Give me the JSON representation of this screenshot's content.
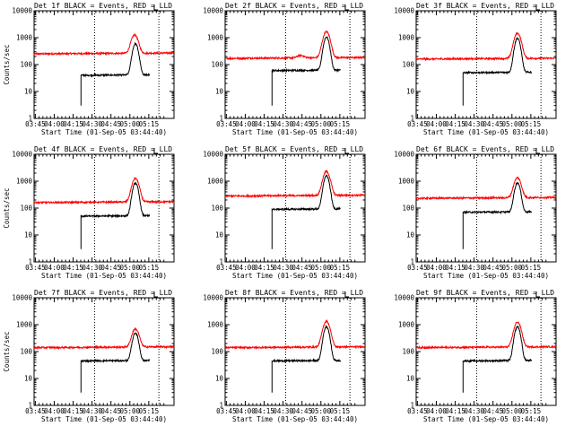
{
  "chart_data": [
    {
      "type": "line",
      "title": "Det 1f BLACK = Events, RED = LLD",
      "xlabel": "Start Time (01-Sep-05 03:44:40)",
      "ylabel": "Counts/sec",
      "ylim": [
        1,
        10000
      ],
      "yscale": "log",
      "x_tick_labels": [
        "03:45",
        "04:00",
        "04:15",
        "04:30",
        "04:45",
        "05:00",
        "05:15"
      ],
      "y_tick_labels": [
        "1",
        "10",
        "100",
        "1000",
        "10000"
      ],
      "xlim_minutes": [
        0,
        37
      ],
      "vlines_minutes": [
        16,
        33
      ],
      "series": [
        {
          "name": "LLD",
          "color": "#ff0000",
          "base": 250,
          "peak": 1000,
          "peak_t": 26.6,
          "width": 1.1,
          "start": 0,
          "end": 37,
          "bump_t": null,
          "bump_amp": 0
        },
        {
          "name": "Events",
          "color": "#000000",
          "base": 40,
          "peak": 550,
          "peak_t": 26.8,
          "width": 0.9,
          "start": 12.4,
          "end": 30.6,
          "bump_t": null,
          "bump_amp": 0
        }
      ]
    },
    {
      "type": "line",
      "title": "Det 2f BLACK = Events, RED = LLD",
      "xlabel": "Start Time (01-Sep-05 03:44:40)",
      "ylabel": "",
      "ylim": [
        1,
        10000
      ],
      "yscale": "log",
      "x_tick_labels": [
        "03:45",
        "04:00",
        "04:15",
        "04:30",
        "04:45",
        "05:00",
        "05:15"
      ],
      "y_tick_labels": [
        "1",
        "10",
        "100",
        "1000",
        "10000"
      ],
      "xlim_minutes": [
        0,
        37
      ],
      "vlines_minutes": [
        16,
        33
      ],
      "series": [
        {
          "name": "LLD",
          "color": "#ff0000",
          "base": 170,
          "peak": 1500,
          "peak_t": 26.8,
          "width": 1.1,
          "start": 0,
          "end": 37,
          "bump_t": 20,
          "bump_amp": 0.25
        },
        {
          "name": "Events",
          "color": "#000000",
          "base": 60,
          "peak": 1000,
          "peak_t": 26.8,
          "width": 0.9,
          "start": 12.4,
          "end": 30.6,
          "bump_t": null,
          "bump_amp": 0
        }
      ]
    },
    {
      "type": "line",
      "title": "Det 3f BLACK = Events, RED = LLD",
      "xlabel": "Start Time (01-Sep-05 03:44:40)",
      "ylabel": "",
      "ylim": [
        1,
        10000
      ],
      "yscale": "log",
      "x_tick_labels": [
        "03:45",
        "04:00",
        "04:15",
        "04:30",
        "04:45",
        "05:00",
        "05:15"
      ],
      "y_tick_labels": [
        "1",
        "10",
        "100",
        "1000",
        "10000"
      ],
      "xlim_minutes": [
        0,
        37
      ],
      "vlines_minutes": [
        16,
        33
      ],
      "series": [
        {
          "name": "LLD",
          "color": "#ff0000",
          "base": 160,
          "peak": 1300,
          "peak_t": 26.8,
          "width": 1.1,
          "start": 0,
          "end": 37,
          "bump_t": null,
          "bump_amp": 0
        },
        {
          "name": "Events",
          "color": "#000000",
          "base": 50,
          "peak": 900,
          "peak_t": 26.8,
          "width": 0.9,
          "start": 12.4,
          "end": 30.6,
          "bump_t": null,
          "bump_amp": 0
        }
      ]
    },
    {
      "type": "line",
      "title": "Det 4f BLACK = Events, RED = LLD",
      "xlabel": "Start Time (01-Sep-05 03:44:40)",
      "ylabel": "Counts/sec",
      "ylim": [
        1,
        10000
      ],
      "yscale": "log",
      "x_tick_labels": [
        "03:45",
        "04:00",
        "04:15",
        "04:30",
        "04:45",
        "05:00",
        "05:15"
      ],
      "y_tick_labels": [
        "1",
        "10",
        "100",
        "1000",
        "10000"
      ],
      "xlim_minutes": [
        0,
        37
      ],
      "vlines_minutes": [
        16,
        33
      ],
      "series": [
        {
          "name": "LLD",
          "color": "#ff0000",
          "base": 160,
          "peak": 1100,
          "peak_t": 26.8,
          "width": 1.1,
          "start": 0,
          "end": 37,
          "bump_t": null,
          "bump_amp": 0
        },
        {
          "name": "Events",
          "color": "#000000",
          "base": 50,
          "peak": 800,
          "peak_t": 26.8,
          "width": 0.9,
          "start": 12.4,
          "end": 30.6,
          "bump_t": null,
          "bump_amp": 0
        }
      ]
    },
    {
      "type": "line",
      "title": "Det 5f BLACK = Events, RED = LLD",
      "xlabel": "Start Time (01-Sep-05 03:44:40)",
      "ylabel": "",
      "ylim": [
        1,
        10000
      ],
      "yscale": "log",
      "x_tick_labels": [
        "03:45",
        "04:00",
        "04:15",
        "04:30",
        "04:45",
        "05:00",
        "05:15"
      ],
      "y_tick_labels": [
        "1",
        "10",
        "100",
        "1000",
        "10000"
      ],
      "xlim_minutes": [
        0,
        37
      ],
      "vlines_minutes": [
        16,
        33
      ],
      "series": [
        {
          "name": "LLD",
          "color": "#ff0000",
          "base": 280,
          "peak": 2000,
          "peak_t": 26.8,
          "width": 1.1,
          "start": 0,
          "end": 37,
          "bump_t": null,
          "bump_amp": 0
        },
        {
          "name": "Events",
          "color": "#000000",
          "base": 90,
          "peak": 1500,
          "peak_t": 26.8,
          "width": 0.9,
          "start": 12.4,
          "end": 30.6,
          "bump_t": null,
          "bump_amp": 0
        }
      ]
    },
    {
      "type": "line",
      "title": "Det 6f BLACK = Events, RED = LLD",
      "xlabel": "Start Time (01-Sep-05 03:44:40)",
      "ylabel": "",
      "ylim": [
        1,
        10000
      ],
      "yscale": "log",
      "x_tick_labels": [
        "03:45",
        "04:00",
        "04:15",
        "04:30",
        "04:45",
        "05:00",
        "05:15"
      ],
      "y_tick_labels": [
        "1",
        "10",
        "100",
        "1000",
        "10000"
      ],
      "xlim_minutes": [
        0,
        37
      ],
      "vlines_minutes": [
        16,
        33
      ],
      "series": [
        {
          "name": "LLD",
          "color": "#ff0000",
          "base": 230,
          "peak": 1100,
          "peak_t": 26.8,
          "width": 1.1,
          "start": 0,
          "end": 37,
          "bump_t": null,
          "bump_amp": 0
        },
        {
          "name": "Events",
          "color": "#000000",
          "base": 70,
          "peak": 800,
          "peak_t": 26.8,
          "width": 0.9,
          "start": 12.4,
          "end": 30.6,
          "bump_t": null,
          "bump_amp": 0
        }
      ]
    },
    {
      "type": "line",
      "title": "Det 7f BLACK = Events, RED = LLD",
      "xlabel": "Start Time (01-Sep-05 03:44:40)",
      "ylabel": "Counts/sec",
      "ylim": [
        1,
        10000
      ],
      "yscale": "log",
      "x_tick_labels": [
        "03:45",
        "04:00",
        "04:15",
        "04:30",
        "04:45",
        "05:00",
        "05:15"
      ],
      "y_tick_labels": [
        "1",
        "10",
        "100",
        "1000",
        "10000"
      ],
      "xlim_minutes": [
        0,
        37
      ],
      "vlines_minutes": [
        16,
        33
      ],
      "series": [
        {
          "name": "LLD",
          "color": "#ff0000",
          "base": 140,
          "peak": 550,
          "peak_t": 26.8,
          "width": 1.1,
          "start": 0,
          "end": 37,
          "bump_t": null,
          "bump_amp": 0
        },
        {
          "name": "Events",
          "color": "#000000",
          "base": 45,
          "peak": 450,
          "peak_t": 26.8,
          "width": 0.9,
          "start": 12.4,
          "end": 30.6,
          "bump_t": null,
          "bump_amp": 0
        }
      ]
    },
    {
      "type": "line",
      "title": "Det 8f BLACK = Events, RED = LLD",
      "xlabel": "Start Time (01-Sep-05 03:44:40)",
      "ylabel": "",
      "ylim": [
        1,
        10000
      ],
      "yscale": "log",
      "x_tick_labels": [
        "03:45",
        "04:00",
        "04:15",
        "04:30",
        "04:45",
        "05:00",
        "05:15"
      ],
      "y_tick_labels": [
        "1",
        "10",
        "100",
        "1000",
        "10000"
      ],
      "xlim_minutes": [
        0,
        37
      ],
      "vlines_minutes": [
        16,
        33
      ],
      "series": [
        {
          "name": "LLD",
          "color": "#ff0000",
          "base": 140,
          "peak": 1200,
          "peak_t": 26.8,
          "width": 1.1,
          "start": 0,
          "end": 37,
          "bump_t": null,
          "bump_amp": 0
        },
        {
          "name": "Events",
          "color": "#000000",
          "base": 45,
          "peak": 800,
          "peak_t": 26.8,
          "width": 0.9,
          "start": 12.4,
          "end": 30.6,
          "bump_t": null,
          "bump_amp": 0
        }
      ]
    },
    {
      "type": "line",
      "title": "Det 9f BLACK = Events, RED = LLD",
      "xlabel": "Start Time (01-Sep-05 03:44:40)",
      "ylabel": "",
      "ylim": [
        1,
        10000
      ],
      "yscale": "log",
      "x_tick_labels": [
        "03:45",
        "04:00",
        "04:15",
        "04:30",
        "04:45",
        "05:00",
        "05:15"
      ],
      "y_tick_labels": [
        "1",
        "10",
        "100",
        "1000",
        "10000"
      ],
      "xlim_minutes": [
        0,
        37
      ],
      "vlines_minutes": [
        16,
        33
      ],
      "series": [
        {
          "name": "LLD",
          "color": "#ff0000",
          "base": 140,
          "peak": 1100,
          "peak_t": 26.8,
          "width": 1.1,
          "start": 0,
          "end": 37,
          "bump_t": null,
          "bump_amp": 0
        },
        {
          "name": "Events",
          "color": "#000000",
          "base": 45,
          "peak": 800,
          "peak_t": 26.8,
          "width": 0.9,
          "start": 12.4,
          "end": 30.6,
          "bump_t": null,
          "bump_amp": 0
        }
      ]
    }
  ]
}
